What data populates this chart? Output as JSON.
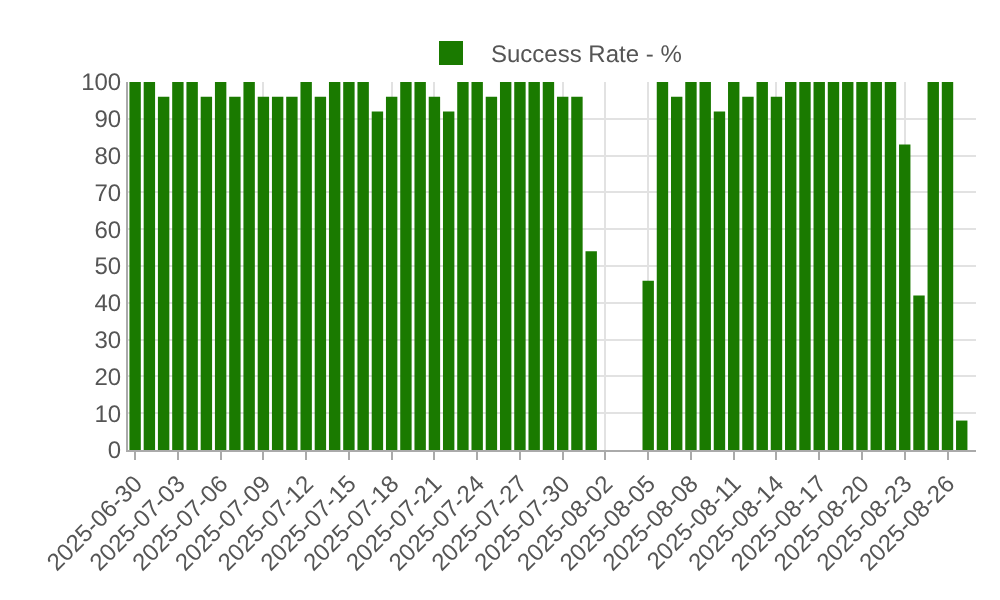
{
  "chart_data": {
    "type": "bar",
    "x": [
      "2025-06-30",
      "2025-07-01",
      "2025-07-02",
      "2025-07-03",
      "2025-07-04",
      "2025-07-05",
      "2025-07-06",
      "2025-07-07",
      "2025-07-08",
      "2025-07-09",
      "2025-07-10",
      "2025-07-11",
      "2025-07-12",
      "2025-07-13",
      "2025-07-14",
      "2025-07-15",
      "2025-07-16",
      "2025-07-17",
      "2025-07-18",
      "2025-07-19",
      "2025-07-20",
      "2025-07-21",
      "2025-07-22",
      "2025-07-23",
      "2025-07-24",
      "2025-07-25",
      "2025-07-26",
      "2025-07-27",
      "2025-07-28",
      "2025-07-29",
      "2025-07-30",
      "2025-07-31",
      "2025-08-01",
      "2025-08-05",
      "2025-08-06",
      "2025-08-07",
      "2025-08-08",
      "2025-08-09",
      "2025-08-10",
      "2025-08-11",
      "2025-08-12",
      "2025-08-13",
      "2025-08-14",
      "2025-08-15",
      "2025-08-16",
      "2025-08-17",
      "2025-08-18",
      "2025-08-19",
      "2025-08-20",
      "2025-08-21",
      "2025-08-22",
      "2025-08-23",
      "2025-08-24",
      "2025-08-25",
      "2025-08-26",
      "2025-08-27"
    ],
    "series": [
      {
        "name": "Success Rate - %",
        "color": "#1a7a00",
        "values": [
          100,
          100,
          96,
          100,
          100,
          96,
          100,
          96,
          100,
          96,
          96,
          96,
          100,
          96,
          100,
          100,
          100,
          92,
          96,
          100,
          100,
          96,
          92,
          100,
          100,
          96,
          100,
          100,
          100,
          100,
          96,
          96,
          54,
          46,
          100,
          96,
          100,
          100,
          92,
          100,
          96,
          100,
          96,
          100,
          100,
          100,
          100,
          100,
          100,
          100,
          100,
          83,
          42,
          100,
          100,
          8
        ]
      }
    ],
    "xlim": [
      "2025-06-29T12:00",
      "2025-08-28"
    ],
    "xticks": [
      "2025-06-30",
      "2025-07-03",
      "2025-07-06",
      "2025-07-09",
      "2025-07-12",
      "2025-07-15",
      "2025-07-18",
      "2025-07-21",
      "2025-07-24",
      "2025-07-27",
      "2025-07-30",
      "2025-08-02",
      "2025-08-05",
      "2025-08-08",
      "2025-08-11",
      "2025-08-14",
      "2025-08-17",
      "2025-08-20",
      "2025-08-23",
      "2025-08-26"
    ],
    "ylim": [
      0,
      100
    ],
    "yticks": [
      0,
      10,
      20,
      30,
      40,
      50,
      60,
      70,
      80,
      90,
      100
    ],
    "grid": true,
    "legend": "top"
  }
}
